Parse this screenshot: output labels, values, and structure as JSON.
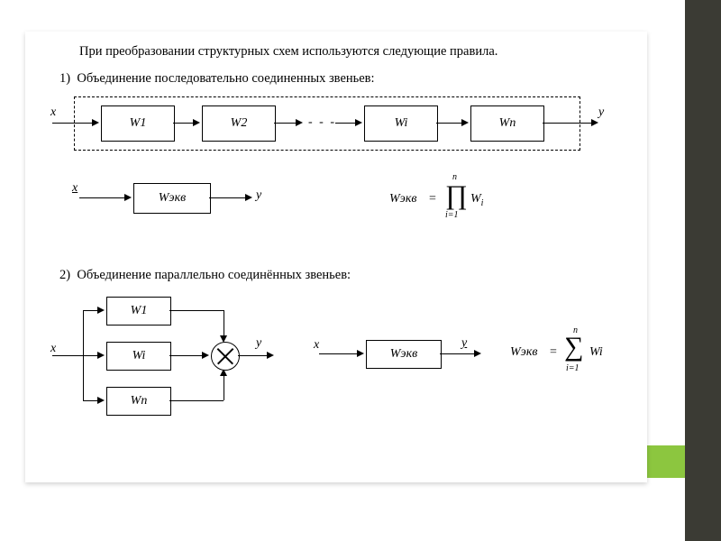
{
  "colors": {
    "sidebar": "#3b3b34",
    "accent": "#8cc63f",
    "page_bg": "#ffffff",
    "text": "#000000",
    "line": "#000000"
  },
  "intro": "При преобразовании структурных схем используются следующие правила.",
  "rules": {
    "r1": {
      "num": "1)",
      "text": "Объединение последовательно соединенных звеньев:"
    },
    "r2": {
      "num": "2)",
      "text": "Объединение параллельно соединённых звеньев:"
    }
  },
  "diagram1": {
    "type": "block-diagram-serial",
    "input": "x",
    "output": "y",
    "blocks": [
      "W1",
      "W2",
      "Wi",
      "Wn"
    ],
    "ellipsis": "- - -",
    "dashed_border": true
  },
  "equiv1": {
    "input": "x",
    "output": "y",
    "block": "Wэкв",
    "formula": {
      "lhs": "Wэкв",
      "op": "∏",
      "lower": "i=1",
      "upper": "n",
      "term": "W",
      "term_sub": "i"
    }
  },
  "diagram2": {
    "type": "block-diagram-parallel",
    "input": "x",
    "output": "y",
    "blocks": [
      "W1",
      "Wi",
      "Wn"
    ],
    "summator": "⊗"
  },
  "equiv2": {
    "input": "x",
    "output": "y",
    "block": "Wэкв",
    "formula": {
      "lhs": "Wэкв",
      "op": "∑",
      "lower": "i=1",
      "upper": "n",
      "term": "Wi"
    }
  }
}
